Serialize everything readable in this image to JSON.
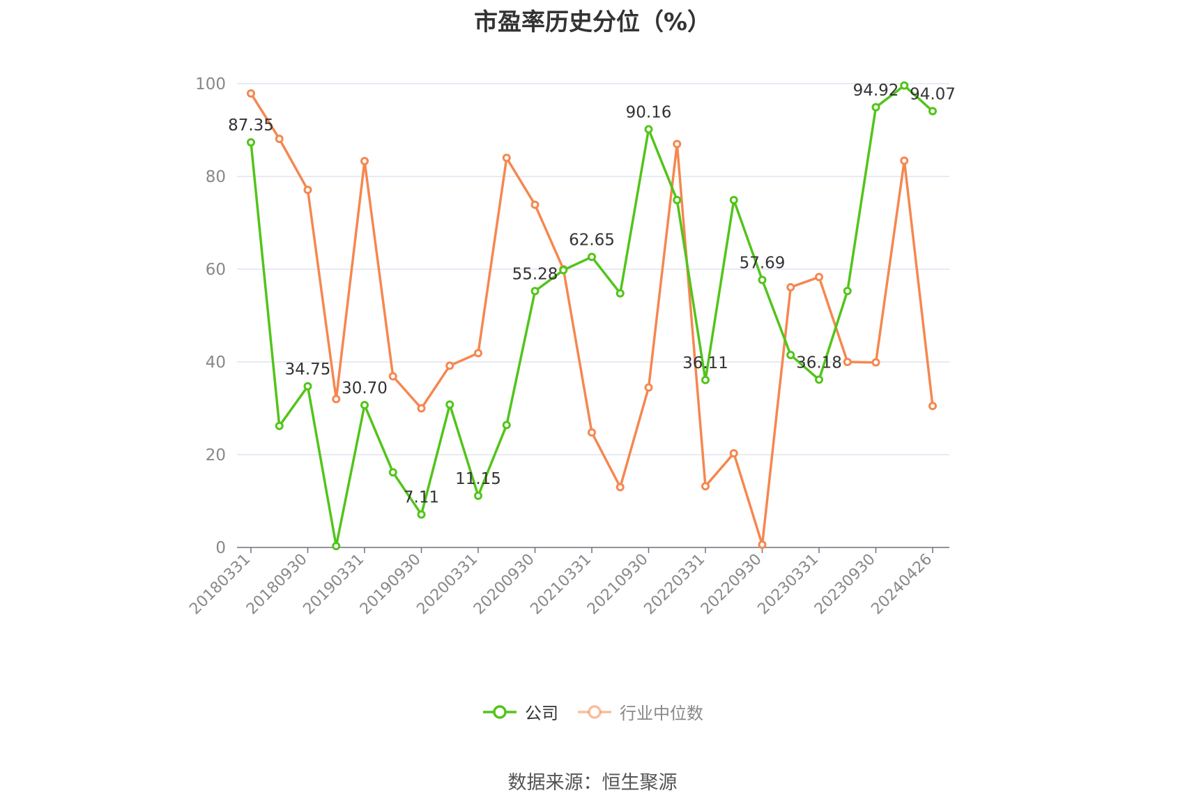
{
  "chart_data": {
    "type": "line",
    "title": "市盈率历史分位（%）",
    "x_tick_labels": [
      "20180331",
      "20180930",
      "20190331",
      "20190930",
      "20200331",
      "20200930",
      "20210331",
      "20210930",
      "20220331",
      "20220930",
      "20230331",
      "20230930",
      "20240426"
    ],
    "x_tick_indices": [
      0,
      2,
      4,
      6,
      8,
      10,
      12,
      14,
      16,
      18,
      20,
      22,
      24
    ],
    "ylim": [
      0,
      100
    ],
    "y_ticks": [
      0,
      20,
      40,
      60,
      80,
      100
    ],
    "grid": true,
    "legend_position": "bottom",
    "series": [
      {
        "name": "公司",
        "color": "#52c41a",
        "values": [
          87.35,
          26.2,
          34.75,
          0.3,
          30.7,
          16.2,
          7.11,
          30.8,
          11.15,
          26.4,
          55.28,
          59.8,
          62.65,
          54.8,
          90.16,
          74.9,
          36.11,
          74.9,
          57.69,
          41.5,
          36.18,
          55.3,
          94.92,
          99.6,
          94.07
        ],
        "labels": {
          "0": "87.35",
          "2": "34.75",
          "4": "30.70",
          "6": "7.11",
          "8": "11.15",
          "10": "55.28",
          "12": "62.65",
          "14": "90.16",
          "16": "36.11",
          "18": "57.69",
          "20": "36.18",
          "22": "94.92",
          "24": "94.07"
        }
      },
      {
        "name": "行业中位数",
        "color": "#f5874f",
        "values": [
          97.9,
          88.1,
          77.1,
          32.0,
          83.3,
          36.9,
          30.0,
          39.2,
          41.9,
          84.0,
          73.9,
          60.0,
          24.8,
          13.0,
          34.5,
          87.0,
          13.2,
          20.3,
          0.6,
          56.1,
          58.3,
          40.0,
          39.9,
          83.4,
          30.5
        ]
      }
    ]
  },
  "footer": {
    "source": "数据来源：恒生聚源"
  }
}
